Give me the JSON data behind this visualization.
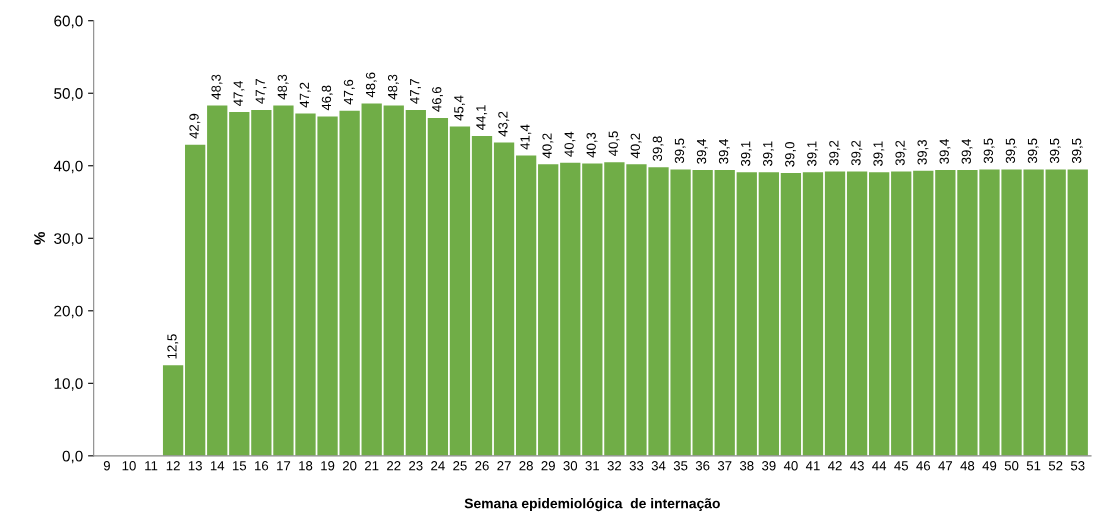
{
  "chart_data": {
    "type": "bar",
    "xlabel": "Semana epidemiológica  de internação",
    "ylabel": "%",
    "categories": [
      "9",
      "10",
      "11",
      "12",
      "13",
      "14",
      "15",
      "16",
      "17",
      "18",
      "19",
      "20",
      "21",
      "22",
      "23",
      "24",
      "25",
      "26",
      "27",
      "28",
      "29",
      "30",
      "31",
      "32",
      "33",
      "34",
      "35",
      "36",
      "37",
      "38",
      "39",
      "40",
      "41",
      "42",
      "43",
      "44",
      "45",
      "46",
      "47",
      "48",
      "49",
      "50",
      "51",
      "52",
      "53"
    ],
    "values": [
      null,
      null,
      null,
      12.5,
      42.9,
      48.3,
      47.4,
      47.7,
      48.3,
      47.2,
      46.8,
      47.6,
      48.6,
      48.3,
      47.7,
      46.6,
      45.4,
      44.1,
      43.2,
      41.4,
      40.2,
      40.4,
      40.3,
      40.5,
      40.2,
      39.8,
      39.5,
      39.4,
      39.4,
      39.1,
      39.1,
      39.0,
      39.1,
      39.2,
      39.2,
      39.1,
      39.2,
      39.3,
      39.4,
      39.4,
      39.5,
      39.5,
      39.5,
      39.5,
      39.5
    ],
    "value_labels": [
      null,
      null,
      null,
      "12,5",
      "42,9",
      "48,3",
      "47,4",
      "47,7",
      "48,3",
      "47,2",
      "46,8",
      "47,6",
      "48,6",
      "48,3",
      "47,7",
      "46,6",
      "45,4",
      "44,1",
      "43,2",
      "41,4",
      "40,2",
      "40,4",
      "40,3",
      "40,5",
      "40,2",
      "39,8",
      "39,5",
      "39,4",
      "39,4",
      "39,1",
      "39,1",
      "39,0",
      "39,1",
      "39,2",
      "39,2",
      "39,1",
      "39,2",
      "39,3",
      "39,4",
      "39,4",
      "39,5",
      "39,5",
      "39,5",
      "39,5",
      "39,5"
    ],
    "color": "#70ad47",
    "ylim": [
      0,
      60
    ],
    "yticks": [
      {
        "value": 0,
        "label": "0,0"
      },
      {
        "value": 10,
        "label": "10,0"
      },
      {
        "value": 20,
        "label": "20,0"
      },
      {
        "value": 30,
        "label": "30,0"
      },
      {
        "value": 40,
        "label": "40,0"
      },
      {
        "value": 50,
        "label": "50,0"
      },
      {
        "value": 60,
        "label": "60,0"
      }
    ],
    "grid": false,
    "legend": false
  }
}
